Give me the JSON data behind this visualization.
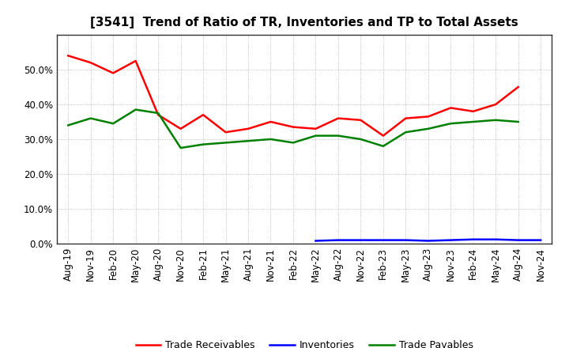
{
  "title": "[3541]  Trend of Ratio of TR, Inventories and TP to Total Assets",
  "labels": [
    "Aug-19",
    "Nov-19",
    "Feb-20",
    "May-20",
    "Aug-20",
    "Nov-20",
    "Feb-21",
    "May-21",
    "Aug-21",
    "Nov-21",
    "Feb-22",
    "May-22",
    "Aug-22",
    "Nov-22",
    "Feb-23",
    "May-23",
    "Aug-23",
    "Nov-23",
    "Feb-24",
    "May-24",
    "Aug-24",
    "Nov-24"
  ],
  "trade_receivables": [
    0.54,
    0.52,
    0.49,
    0.525,
    0.37,
    0.33,
    0.37,
    0.32,
    0.33,
    0.35,
    0.335,
    0.33,
    0.36,
    0.355,
    0.31,
    0.36,
    0.365,
    0.39,
    0.38,
    0.4,
    0.45,
    null
  ],
  "inventories": [
    null,
    null,
    null,
    null,
    null,
    null,
    null,
    null,
    null,
    null,
    null,
    0.008,
    0.01,
    0.01,
    0.01,
    0.01,
    0.008,
    0.01,
    0.012,
    0.012,
    0.01,
    0.01
  ],
  "trade_payables": [
    0.34,
    0.36,
    0.345,
    0.385,
    0.375,
    0.275,
    0.285,
    0.29,
    0.295,
    0.3,
    0.29,
    0.31,
    0.31,
    0.3,
    0.28,
    0.32,
    0.33,
    0.345,
    0.35,
    0.355,
    0.35,
    null
  ],
  "colors": {
    "trade_receivables": "#ff0000",
    "inventories": "#0000ff",
    "trade_payables": "#008000"
  },
  "ylim": [
    0.0,
    0.6
  ],
  "yticks": [
    0.0,
    0.1,
    0.2,
    0.3,
    0.4,
    0.5
  ],
  "background_color": "#ffffff",
  "grid_color": "#999999",
  "legend_labels": [
    "Trade Receivables",
    "Inventories",
    "Trade Payables"
  ],
  "title_fontsize": 11,
  "tick_fontsize": 8.5,
  "legend_fontsize": 9
}
